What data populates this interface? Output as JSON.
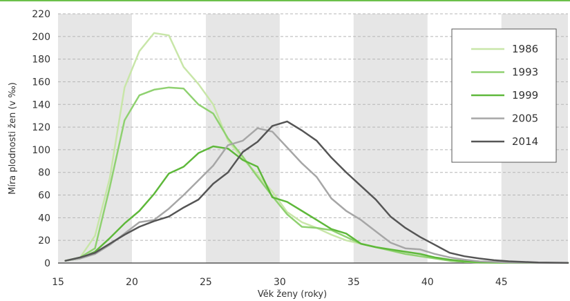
{
  "chart_data": {
    "type": "line",
    "xlabel": "Věk ženy (roky)",
    "ylabel": "Míra plodnosti žen (v ‰)",
    "xlim": [
      15,
      49.5
    ],
    "ylim": [
      0,
      220
    ],
    "x_ticks": [
      15,
      20,
      25,
      30,
      35,
      40,
      45
    ],
    "y_ticks": [
      0,
      20,
      40,
      60,
      80,
      100,
      120,
      140,
      160,
      180,
      200,
      220
    ],
    "grid": "horizontal dashed",
    "background_bands": [
      [
        15,
        20
      ],
      [
        25,
        30
      ],
      [
        35,
        40
      ],
      [
        45,
        49.5
      ]
    ],
    "legend_position": "top-right",
    "x": [
      15.5,
      16.5,
      17.5,
      18.5,
      19.5,
      20.5,
      21.5,
      22.5,
      23.5,
      24.5,
      25.5,
      26.5,
      27.5,
      28.5,
      29.5,
      30.5,
      31.5,
      32.5,
      33.5,
      34.5,
      35.5,
      36.5,
      37.5,
      38.5,
      39.5,
      40.5,
      41.5,
      42.5,
      43.5,
      44.5,
      45.5,
      46.5,
      47.5,
      48.5,
      49.5
    ],
    "series": [
      {
        "name": "1986",
        "color": "#c8e6a8",
        "values": [
          2,
          5,
          24,
          75,
          155,
          187,
          203,
          201,
          173,
          158,
          140,
          108,
          92,
          78,
          63,
          45,
          36,
          31,
          25,
          20,
          17,
          14,
          11,
          8,
          6,
          4,
          2,
          1,
          0.5,
          0.3,
          0.2,
          0.1,
          0.1,
          0.1,
          0.1
        ]
      },
      {
        "name": "1993",
        "color": "#8fd170",
        "values": [
          2,
          5,
          13,
          67,
          126,
          148,
          153,
          155,
          154,
          140,
          132,
          110,
          94,
          76,
          59,
          43,
          32,
          31,
          29,
          23,
          17,
          14,
          11,
          8,
          6,
          4,
          2,
          1,
          0.5,
          0.3,
          0.2,
          0.1,
          0.1,
          0.1,
          0.1
        ]
      },
      {
        "name": "1999",
        "color": "#5eb83a",
        "values": [
          2,
          4,
          10,
          22,
          35,
          46,
          61,
          79,
          85,
          97,
          103,
          101,
          91,
          85,
          58,
          54,
          46,
          38,
          30,
          26,
          17,
          14,
          12,
          10,
          8,
          5,
          3,
          1.5,
          0.8,
          0.5,
          0.3,
          0.2,
          0.1,
          0.1,
          0.1
        ]
      },
      {
        "name": "2005",
        "color": "#a6a6a6",
        "values": [
          2,
          4,
          8,
          16,
          26,
          36,
          38,
          48,
          60,
          73,
          86,
          104,
          108,
          119,
          116,
          102,
          88,
          76,
          57,
          46,
          38,
          28,
          18,
          13,
          12,
          8,
          5,
          3,
          1.5,
          1,
          0.5,
          0.3,
          0.2,
          0.1,
          0.1
        ]
      },
      {
        "name": "2014",
        "color": "#555555",
        "values": [
          2,
          5,
          9,
          17,
          25,
          32,
          37,
          41,
          49,
          56,
          70,
          80,
          98,
          107,
          121,
          125,
          117,
          108,
          93,
          80,
          68,
          56,
          41,
          31,
          23,
          16,
          9,
          6,
          4,
          2.5,
          1.5,
          1,
          0.5,
          0.3,
          0.2
        ]
      }
    ]
  }
}
